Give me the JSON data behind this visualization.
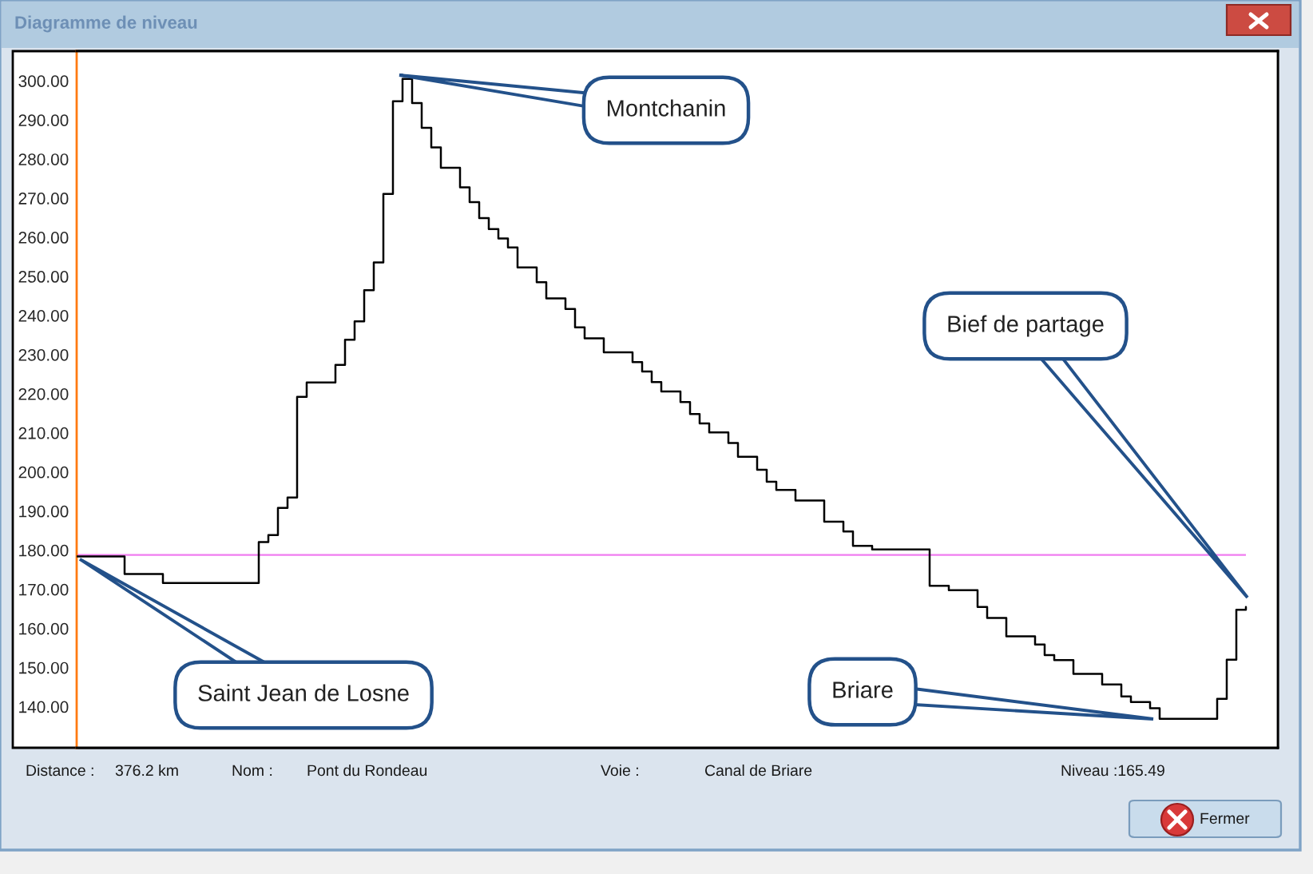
{
  "chart_data": {
    "type": "step",
    "title": "Diagramme de niveau",
    "categories": [
      null,
      null,
      null,
      null,
      null,
      null,
      null,
      null,
      null,
      null,
      null,
      null,
      null,
      null,
      null,
      null,
      null,
      null,
      null,
      null,
      null,
      null,
      null,
      null,
      null,
      null,
      null,
      null,
      null,
      null,
      null,
      null,
      null,
      null,
      null,
      null,
      null,
      null,
      null,
      null,
      null,
      null,
      null,
      null,
      null,
      null,
      null,
      null,
      null,
      null,
      null,
      null,
      null,
      null,
      null,
      null,
      null,
      null,
      null,
      null,
      null,
      null,
      null,
      null,
      null,
      null,
      null,
      null,
      null,
      null,
      null,
      null,
      null,
      null,
      null,
      null,
      null,
      null,
      null,
      null,
      null,
      null,
      null,
      null,
      null,
      null,
      null,
      null,
      null,
      null,
      null,
      null,
      null,
      null,
      null,
      null,
      null,
      null,
      null,
      null,
      null,
      null,
      null,
      null,
      null,
      null,
      null,
      null,
      null,
      null,
      null,
      null,
      null,
      null,
      null,
      null,
      null,
      null,
      null,
      null,
      null,
      null,
      null
    ],
    "series": [
      {
        "color": "#000000",
        "values": [
          178.4,
          178.4,
          178.4,
          178.4,
          178.4,
          173.9,
          173.9,
          173.9,
          173.9,
          171.6,
          171.6,
          171.6,
          171.6,
          171.6,
          171.6,
          171.6,
          171.6,
          171.6,
          171.6,
          182.1,
          183.9,
          190.8,
          193.5,
          219.2,
          222.9,
          222.9,
          222.9,
          227.4,
          233.8,
          238.5,
          246.5,
          253.6,
          271.1,
          294.8,
          300.5,
          294.3,
          288.0,
          283.0,
          277.8,
          277.8,
          272.8,
          269.0,
          264.9,
          262.1,
          259.7,
          257.4,
          252.3,
          252.3,
          248.5,
          244.4,
          244.4,
          241.7,
          237.0,
          234.2,
          234.2,
          230.6,
          230.6,
          230.6,
          228.1,
          225.7,
          223.0,
          220.6,
          220.6,
          217.9,
          214.8,
          212.4,
          210.1,
          210.1,
          207.4,
          203.9,
          203.9,
          200.6,
          197.5,
          195.4,
          195.4,
          192.7,
          192.7,
          192.7,
          187.3,
          187.3,
          184.8,
          181.1,
          181.1,
          180.2,
          180.2,
          180.2,
          180.2,
          180.2,
          180.2,
          170.9,
          170.9,
          169.8,
          169.8,
          169.8,
          165.5,
          162.7,
          162.7,
          158.0,
          158.0,
          158.0,
          155.9,
          153.2,
          151.9,
          151.9,
          148.4,
          148.4,
          148.4,
          145.7,
          145.7,
          142.6,
          141.2,
          141.2,
          139.6,
          136.9,
          136.9,
          136.9,
          136.9,
          136.9,
          136.9,
          142.0,
          152.0,
          164.8,
          165.5
        ]
      }
    ],
    "ylim": [
      129.5,
      307.6
    ],
    "yticks": [
      {
        "value": 140,
        "label": "140.00"
      },
      {
        "value": 150,
        "label": "150.00"
      },
      {
        "value": 160,
        "label": "160.00"
      },
      {
        "value": 170,
        "label": "170.00"
      },
      {
        "value": 180,
        "label": "180.00"
      },
      {
        "value": 190,
        "label": "190.00"
      },
      {
        "value": 200,
        "label": "200.00"
      },
      {
        "value": 210,
        "label": "210.00"
      },
      {
        "value": 220,
        "label": "220.00"
      },
      {
        "value": 230,
        "label": "230.00"
      },
      {
        "value": 240,
        "label": "240.00"
      },
      {
        "value": 250,
        "label": "250.00"
      },
      {
        "value": 260,
        "label": "260.00"
      },
      {
        "value": 270,
        "label": "270.00"
      },
      {
        "value": 280,
        "label": "280.00"
      },
      {
        "value": 290,
        "label": "290.00"
      },
      {
        "value": 300,
        "label": "300.00"
      }
    ],
    "tick_labels": "y",
    "ref_lines": [
      {
        "axis": "y",
        "value": 178.8,
        "color": "#f07cf0"
      }
    ],
    "annotations": [
      "Montchanin",
      "Bief de partage",
      "Saint Jean de Losne",
      "Briare",
      "Distance :",
      "376.2 km",
      "Nom :",
      "Pont du Rondeau",
      "Voie :",
      "Canal de Briare",
      "Niveau :165.49",
      "Fermer"
    ]
  }
}
